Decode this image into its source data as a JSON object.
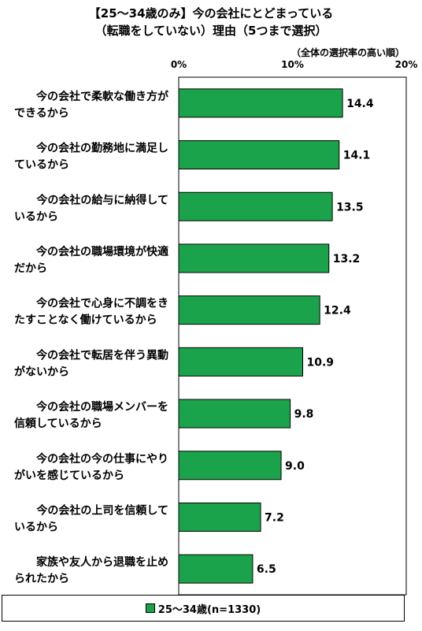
{
  "title_line1": "【25～34歳のみ】今の会社にとどまっている",
  "title_line2": "（転職をしていない）理由（5つまで選択）",
  "note": "（全体の選択率の高い順）",
  "chart_data": {
    "type": "bar",
    "orientation": "horizontal",
    "categories": [
      [
        "今の会社で柔軟な働き方が",
        "できるから"
      ],
      [
        "今の会社の勤務地に満足し",
        "ているから"
      ],
      [
        "今の会社の給与に納得して",
        "いるから"
      ],
      [
        "今の会社の職場環境が快適",
        "だから"
      ],
      [
        "今の会社で心身に不調をき",
        "たすことなく働けているから"
      ],
      [
        "今の会社で転居を伴う異動",
        "がないから"
      ],
      [
        "今の会社の職場メンバーを",
        "信頼しているから"
      ],
      [
        "今の会社の今の仕事にやり",
        "がいを感じているから"
      ],
      [
        "今の会社の上司を信頼して",
        "いるから"
      ],
      [
        "家族や友人から退職を止め",
        "られたから"
      ]
    ],
    "series": [
      {
        "name": "25～34歳(n=1330)",
        "values": [
          14.4,
          14.1,
          13.5,
          13.2,
          12.4,
          10.9,
          9.8,
          9.0,
          7.2,
          6.5
        ]
      }
    ],
    "value_labels": [
      "14.4",
      "14.1",
      "13.5",
      "13.2",
      "12.4",
      "10.9",
      "9.8",
      "9.0",
      "7.2",
      "6.5"
    ],
    "xlim": [
      0,
      20
    ],
    "ticks": [
      0,
      10,
      20
    ],
    "tick_labels": [
      "0%",
      "10%",
      "20%"
    ],
    "color": "#1aa34a",
    "legend_position": "bottom"
  }
}
